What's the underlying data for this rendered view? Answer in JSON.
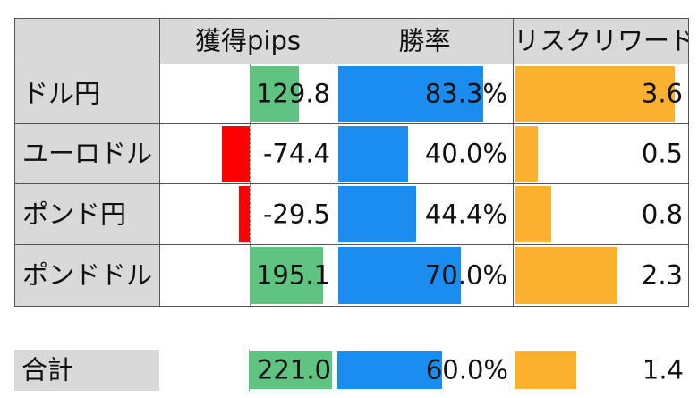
{
  "headers": {
    "blank": "",
    "pips": "獲得pips",
    "winrate": "勝率",
    "rr": "リスクリワード"
  },
  "rows": [
    {
      "pair": "ドル円",
      "pips": "129.8",
      "pips_value": 129.8,
      "winrate": "83.3%",
      "winrate_value": 83.3,
      "rr": "3.6",
      "rr_value": 3.6
    },
    {
      "pair": "ユーロドル",
      "pips": "-74.4",
      "pips_value": -74.4,
      "winrate": "40.0%",
      "winrate_value": 40.0,
      "rr": "0.5",
      "rr_value": 0.5
    },
    {
      "pair": "ポンド円",
      "pips": "-29.5",
      "pips_value": -29.5,
      "winrate": "44.4%",
      "winrate_value": 44.4,
      "rr": "0.8",
      "rr_value": 0.8
    },
    {
      "pair": "ポンドドル",
      "pips": "195.1",
      "pips_value": 195.1,
      "winrate": "70.0%",
      "winrate_value": 70.0,
      "rr": "2.3",
      "rr_value": 2.3
    }
  ],
  "total": {
    "label": "合計",
    "pips": "221.0",
    "pips_value": 221.0,
    "winrate": "60.0%",
    "winrate_value": 60.0,
    "rr": "1.4",
    "rr_value": 1.4
  },
  "colors": {
    "positive": "#5fc382",
    "negative": "#ff0000",
    "winrate": "#1b8cf0",
    "rr": "#fbb12f",
    "header_bg": "#d9d9d9"
  }
}
